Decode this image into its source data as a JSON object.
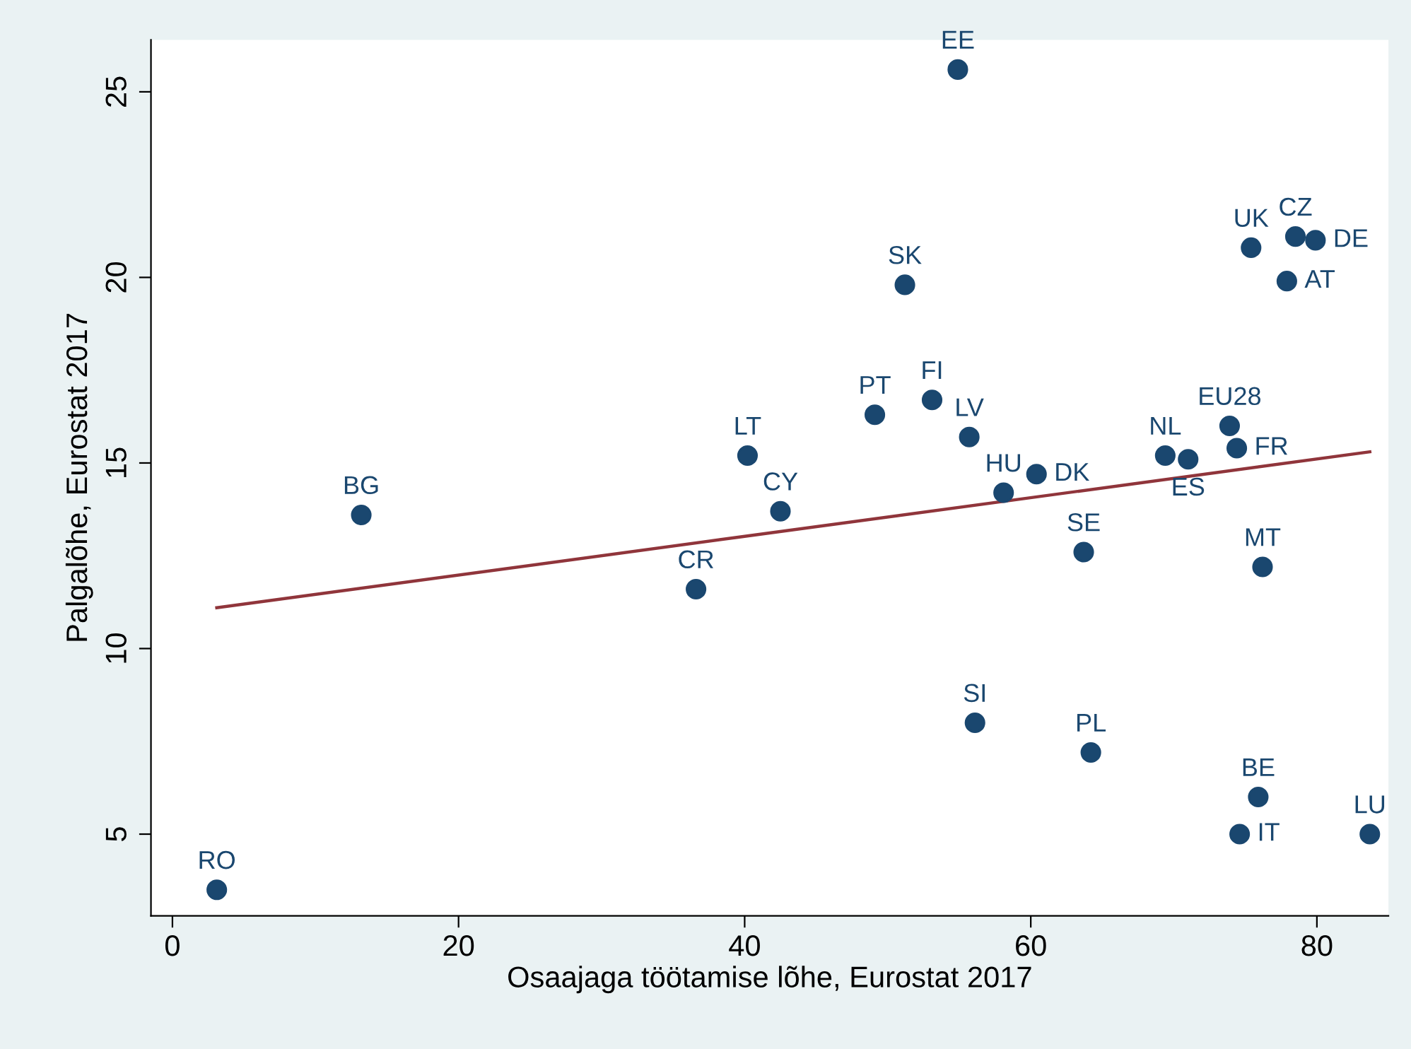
{
  "chart_data": {
    "type": "scatter",
    "xlabel": "Osaajaga töötamise lõhe, Eurostat 2017",
    "ylabel": "Palgalõhe, Eurostat 2017",
    "xlim": [
      -1.5,
      85
    ],
    "ylim": [
      2.8,
      26.4
    ],
    "xticks": [
      0,
      20,
      40,
      60,
      80
    ],
    "yticks": [
      5,
      10,
      15,
      20,
      25
    ],
    "grid": false,
    "series": [
      {
        "marker": "circle",
        "color": "#1a476f",
        "x": [
          3.1,
          13.2,
          36.6,
          40.2,
          42.5,
          49.1,
          51.2,
          54.9,
          53.1,
          55.7,
          58.1,
          60.4,
          56.1,
          63.7,
          64.2,
          69.4,
          71.0,
          73.9,
          74.4,
          76.2,
          75.4,
          78.5,
          79.9,
          77.9,
          75.9,
          74.6,
          83.7
        ],
        "values": [
          3.5,
          13.6,
          11.6,
          15.2,
          13.7,
          16.3,
          19.8,
          25.6,
          16.7,
          15.7,
          14.2,
          14.7,
          8.0,
          12.6,
          7.2,
          15.2,
          15.1,
          16.0,
          15.4,
          12.2,
          20.8,
          21.1,
          21.0,
          19.9,
          6.0,
          5.0,
          5.0
        ]
      },
      {
        "type": "line",
        "color": "#90353b",
        "x": [
          3.1,
          83.7
        ],
        "values": [
          11.1,
          15.3
        ]
      }
    ],
    "annotations": [
      {
        "text": "RO",
        "x": 3.1,
        "y": 3.5
      },
      {
        "text": "BG",
        "x": 13.2,
        "y": 13.6
      },
      {
        "text": "CR",
        "x": 36.6,
        "y": 11.6
      },
      {
        "text": "LT",
        "x": 40.2,
        "y": 15.2
      },
      {
        "text": "CY",
        "x": 42.5,
        "y": 13.7
      },
      {
        "text": "PT",
        "x": 49.1,
        "y": 16.3
      },
      {
        "text": "SK",
        "x": 51.2,
        "y": 19.8
      },
      {
        "text": "EE",
        "x": 54.9,
        "y": 25.6
      },
      {
        "text": "FI",
        "x": 53.1,
        "y": 16.7
      },
      {
        "text": "LV",
        "x": 55.7,
        "y": 15.7
      },
      {
        "text": "HU",
        "x": 58.1,
        "y": 14.2
      },
      {
        "text": "DK",
        "x": 60.4,
        "y": 14.7
      },
      {
        "text": "SI",
        "x": 56.1,
        "y": 8.0
      },
      {
        "text": "SE",
        "x": 63.7,
        "y": 12.6
      },
      {
        "text": "PL",
        "x": 64.2,
        "y": 7.2
      },
      {
        "text": "NL",
        "x": 69.4,
        "y": 15.2
      },
      {
        "text": "ES",
        "x": 71.0,
        "y": 15.1
      },
      {
        "text": "EU28",
        "x": 73.9,
        "y": 16.0
      },
      {
        "text": "FR",
        "x": 74.4,
        "y": 15.4
      },
      {
        "text": "MT",
        "x": 76.2,
        "y": 12.2
      },
      {
        "text": "UK",
        "x": 75.4,
        "y": 20.8
      },
      {
        "text": "CZ",
        "x": 78.5,
        "y": 21.1
      },
      {
        "text": "DE",
        "x": 79.9,
        "y": 21.0
      },
      {
        "text": "AT",
        "x": 77.9,
        "y": 19.9
      },
      {
        "text": "BE",
        "x": 75.9,
        "y": 6.0
      },
      {
        "text": "IT",
        "x": 74.6,
        "y": 5.0
      },
      {
        "text": "LU",
        "x": 83.7,
        "y": 5.0
      }
    ]
  }
}
